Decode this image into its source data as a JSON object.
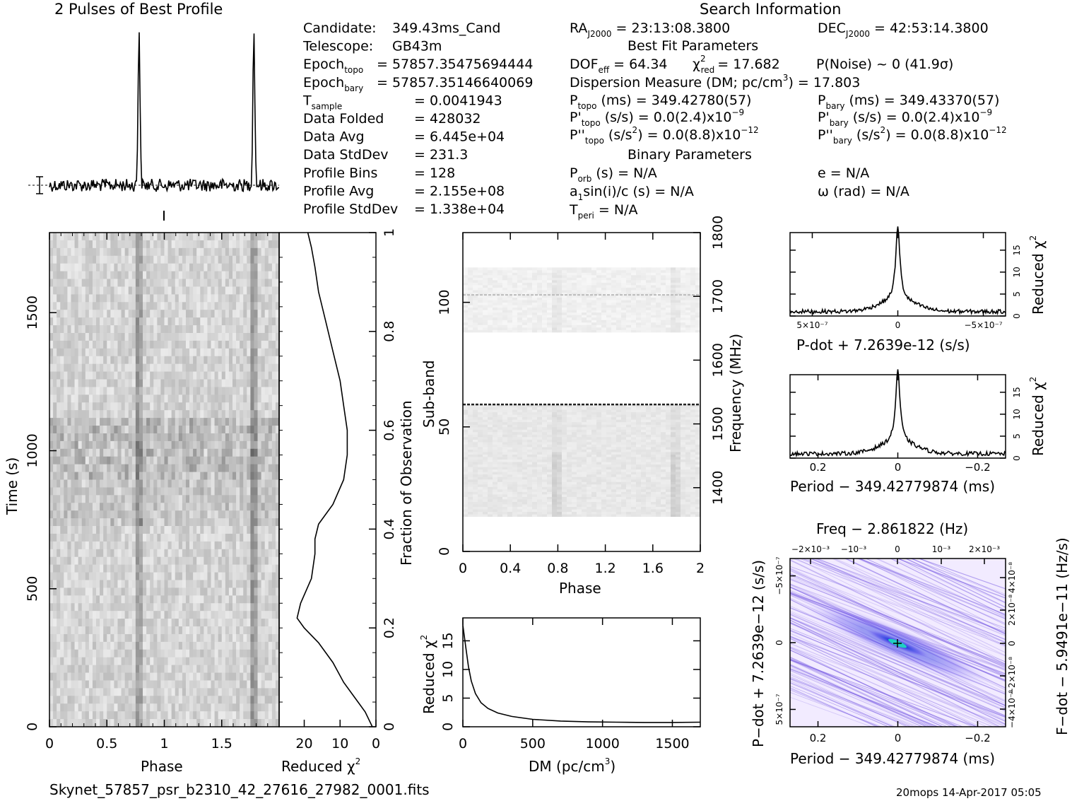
{
  "titles": {
    "profile": "2 Pulses of Best Profile",
    "search": "Search Information",
    "best_fit": "Best Fit Parameters",
    "binary": "Binary Parameters"
  },
  "info_col1": [
    {
      "label": "Candidate:",
      "sub": "",
      "value": "349.43ms_Cand"
    },
    {
      "label": "Telescope:",
      "sub": "",
      "value": "GB43m"
    },
    {
      "label": "Epoch",
      "sub": "topo",
      "value": "= 57857.35475694444"
    },
    {
      "label": "Epoch",
      "sub": "bary",
      "value": "= 57857.35146640069"
    },
    {
      "label": "T",
      "sub": "sample",
      "value": "=   0.0041943"
    },
    {
      "label": "Data Folded",
      "sub": "",
      "value": "=   428032"
    },
    {
      "label": "Data Avg",
      "sub": "",
      "value": "=   6.445e+04"
    },
    {
      "label": "Data StdDev",
      "sub": "",
      "value": "=   231.3"
    },
    {
      "label": "Profile Bins",
      "sub": "",
      "value": "=   128"
    },
    {
      "label": "Profile Avg",
      "sub": "",
      "value": "=   2.155e+08"
    },
    {
      "label": "Profile StdDev",
      "sub": "",
      "value": "=   1.338e+04"
    }
  ],
  "info_col2": {
    "ra": {
      "label": "RA",
      "sub": "J2000",
      "value": "= 23:13:08.3800"
    },
    "dec": {
      "label": "DEC",
      "sub": "J2000",
      "value": "= 42:53:14.3800"
    },
    "dof": {
      "label": "DOF",
      "sub": "eff",
      "value": "= 64.34"
    },
    "chi": {
      "label": "χ",
      "sup": "2",
      "sub": "red",
      "value": "= 17.682"
    },
    "pnoise": "P(Noise) ~ 0    (41.9σ)",
    "dm": {
      "text": "Dispersion Measure (DM; pc/cm",
      "sup": "3",
      "tail": ") = 17.803"
    },
    "ptopo": {
      "label": "P",
      "sub": "topo",
      "value": "(ms) =  349.42780(57)"
    },
    "pbary": {
      "label": "P",
      "sub": "bary",
      "value": "(ms) =  349.43370(57)"
    },
    "pdtopo": {
      "label": "P'",
      "sub": "topo",
      "value": "(s/s) = 0.0(2.4)x10",
      "exp": "−9"
    },
    "pdbary": {
      "label": "P'",
      "sub": "bary",
      "value": "(s/s) = 0.0(2.4)x10",
      "exp": "−9"
    },
    "pddtopo": {
      "label": "P''",
      "sub": "topo",
      "value": "(s/s",
      "sup": "2",
      "tail": ") = 0.0(8.8)x10",
      "exp": "−12"
    },
    "pddbary": {
      "label": "P''",
      "sub": "bary",
      "value": "(s/s",
      "sup": "2",
      "tail": ") = 0.0(8.8)x10",
      "exp": "−12"
    },
    "porb": {
      "label": "P",
      "sub": "orb",
      "value": "(s) = N/A"
    },
    "e": "e = N/A",
    "a1": {
      "label": "a",
      "sub": "1",
      "value": "sin(i)/c (s) = N/A"
    },
    "omega": "ω (rad) = N/A",
    "tperi": {
      "label": "T",
      "sub": "peri",
      "value": "= N/A"
    }
  },
  "footer": {
    "filename": "Skynet_57857_psr_b2310_42_27616_27982_0001.fits",
    "stamp": "20mops 14-Apr-2017 05:05"
  },
  "colors": {
    "background": "#ffffff",
    "ink": "#000000",
    "ppdot_bg": "#f2ebff",
    "ppdot_core": "#3a2bd6",
    "ppdot_peak": "#1fd0c0"
  },
  "chart_data": [
    {
      "id": "profile",
      "type": "line",
      "title": "2 Pulses of Best Profile",
      "x": [
        0,
        2
      ],
      "pulse_phase": [
        0.78,
        1.78
      ],
      "pulse_height_relative": 1.0,
      "noise_level_relative": 0.04
    },
    {
      "id": "time-phase",
      "type": "heatmap",
      "xlabel": "Phase",
      "ylabel": "Time (s)",
      "xlim": [
        0,
        2
      ],
      "ylim": [
        0,
        1790
      ],
      "xticks": [
        "0",
        "0.5",
        "1",
        "1.5"
      ],
      "yticks": [
        "0",
        "500",
        "1000",
        "1500"
      ],
      "pulse_phase": [
        0.78,
        1.78
      ]
    },
    {
      "id": "chi-vs-time",
      "type": "line",
      "xlabel": "Reduced χ²",
      "ylabel": "Fraction of Observation",
      "xlim": [
        27,
        0
      ],
      "ylim": [
        0,
        1
      ],
      "xticks": [
        "20",
        "10",
        "0"
      ],
      "yticks": [
        "0",
        "0.2",
        "0.4",
        "0.6",
        "0.8",
        "1"
      ],
      "points": [
        [
          1,
          0
        ],
        [
          3,
          0.03
        ],
        [
          6,
          0.06
        ],
        [
          9,
          0.09
        ],
        [
          12,
          0.13
        ],
        [
          16,
          0.17
        ],
        [
          20,
          0.2
        ],
        [
          22,
          0.22
        ],
        [
          21,
          0.25
        ],
        [
          18,
          0.3
        ],
        [
          17,
          0.35
        ],
        [
          17,
          0.38
        ],
        [
          16,
          0.41
        ],
        [
          12,
          0.45
        ],
        [
          9,
          0.5
        ],
        [
          8,
          0.55
        ],
        [
          8,
          0.6
        ],
        [
          9,
          0.65
        ],
        [
          10,
          0.7
        ],
        [
          12,
          0.76
        ],
        [
          14,
          0.82
        ],
        [
          16,
          0.88
        ],
        [
          17,
          0.93
        ],
        [
          18,
          0.97
        ],
        [
          19,
          1
        ]
      ]
    },
    {
      "id": "subband-phase",
      "type": "heatmap",
      "xlabel": "Phase",
      "ylabel": "Sub-band",
      "y2label": "Frequency (MHz)",
      "xlim": [
        0,
        2
      ],
      "ylim": [
        0,
        128
      ],
      "y2lim": [
        1300,
        1800
      ],
      "xticks": [
        "0",
        "0.4",
        "0.8",
        "1.2",
        "1.6",
        "2"
      ],
      "yticks": [
        "0",
        "50",
        "100"
      ],
      "y2ticks": [
        "1400",
        "1500",
        "1600",
        "1700",
        "1800"
      ],
      "rfi_subbands": [
        59,
        103
      ],
      "pulse_phase": [
        0.79,
        1.79
      ]
    },
    {
      "id": "chi-vs-dm",
      "type": "line",
      "xlabel": "DM (pc/cm³)",
      "ylabel": "Reduced χ²",
      "xlim": [
        0,
        1700
      ],
      "ylim": [
        0,
        19
      ],
      "xticks": [
        "0",
        "500",
        "1000",
        "1500"
      ],
      "yticks": [
        "0",
        "5",
        "10",
        "15"
      ],
      "points": [
        [
          0,
          17.7
        ],
        [
          20,
          14
        ],
        [
          40,
          10.5
        ],
        [
          60,
          8
        ],
        [
          90,
          5.8
        ],
        [
          130,
          4.2
        ],
        [
          180,
          3.2
        ],
        [
          250,
          2.4
        ],
        [
          350,
          1.8
        ],
        [
          500,
          1.3
        ],
        [
          700,
          1.0
        ],
        [
          900,
          0.85
        ],
        [
          1100,
          0.8
        ],
        [
          1300,
          0.75
        ],
        [
          1500,
          0.75
        ],
        [
          1700,
          0.8
        ]
      ]
    },
    {
      "id": "chi-vs-pdot",
      "type": "line",
      "xlabel": "P-dot + 7.2639e-12 (s/s)",
      "ylabel": "Reduced χ²",
      "xlim": [
        6.3e-07,
        -6.3e-07
      ],
      "ylim": [
        0,
        19
      ],
      "xticks": [
        "5×10⁻⁷",
        "0",
        "−5×10⁻⁷"
      ],
      "yticks": [
        "0",
        "5",
        "10",
        "15"
      ],
      "peak": {
        "x": 0,
        "y": 17.7
      },
      "baseline": 1
    },
    {
      "id": "chi-vs-period",
      "type": "line",
      "xlabel": "Period − 349.42779874 (ms)",
      "ylabel": "Reduced χ²",
      "xlim": [
        0.27,
        -0.27
      ],
      "ylim": [
        0,
        19
      ],
      "xticks": [
        "0.2",
        "0",
        "−0.2"
      ],
      "yticks": [
        "0",
        "5",
        "10",
        "15"
      ],
      "peak": {
        "x": 0,
        "y": 17.7
      },
      "baseline": 1
    },
    {
      "id": "p-pdot",
      "type": "heatmap",
      "title": "Freq − 2.861822 (Hz)",
      "xlabel": "Period − 349.42779874 (ms)",
      "ylabel": "P−dot + 7.2639e−12 (s/s)",
      "y2label": "F−dot − 5.9491e−11 (Hz/s)",
      "xlim": [
        0.27,
        -0.27
      ],
      "ylim": [
        6.3e-07,
        -6.3e-07
      ],
      "xticks": [
        "0.2",
        "0",
        "−0.2"
      ],
      "x2ticks": [
        "−2×10⁻³",
        "−10⁻³",
        "0",
        "10⁻³",
        "2×10⁻³"
      ],
      "yticks": [
        "−5×10⁻⁷",
        "0",
        "5×10⁻⁷"
      ],
      "y2ticks": [
        "4×10⁻⁸",
        "2×10⁻⁸",
        "0",
        "−2×10⁻⁸",
        "−4×10⁻⁸"
      ],
      "peak": {
        "x": 0,
        "y": 0
      }
    }
  ]
}
